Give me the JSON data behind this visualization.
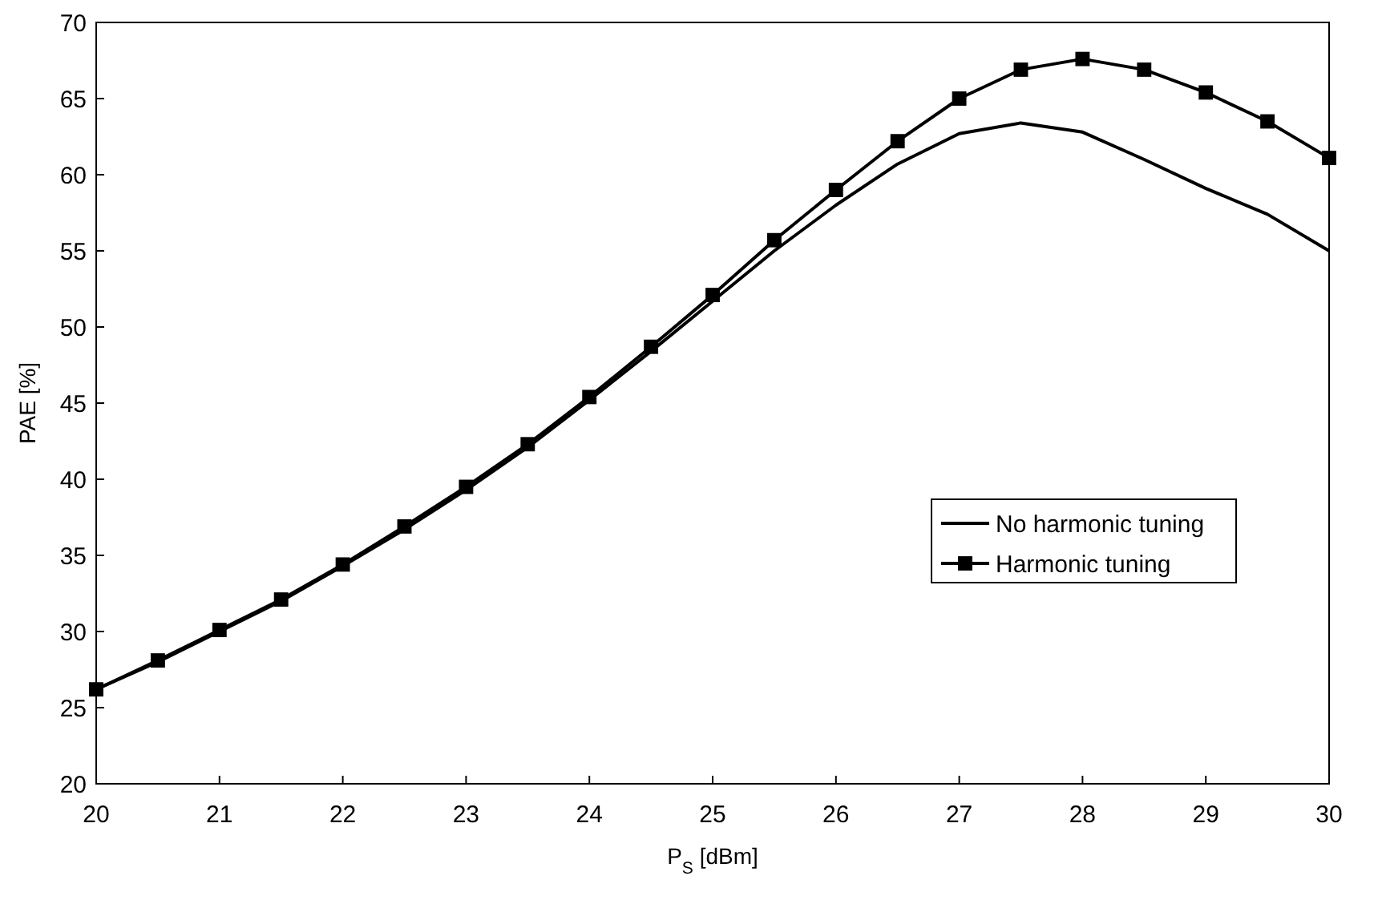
{
  "chart_data": {
    "type": "line",
    "xlabel": "P$_{S}$ [dBm]",
    "ylabel": "PAE [%]",
    "x": [
      20,
      20.5,
      21,
      21.5,
      22,
      22.5,
      23,
      23.5,
      24,
      24.5,
      25,
      25.5,
      26,
      26.5,
      27,
      27.5,
      28,
      28.5,
      29,
      29.5,
      30
    ],
    "series": [
      {
        "name": "No harmonic tuning",
        "color": "#000000",
        "marker": "none",
        "values": [
          26.2,
          28.0,
          30.0,
          32.0,
          34.3,
          36.7,
          39.3,
          42.1,
          45.2,
          48.4,
          51.7,
          55.0,
          58.0,
          60.7,
          62.7,
          63.4,
          62.8,
          61.0,
          59.1,
          57.4,
          55.0
        ]
      },
      {
        "name": "Harmonic tuning",
        "color": "#000000",
        "marker": "square",
        "values": [
          26.2,
          28.1,
          30.1,
          32.1,
          34.4,
          36.9,
          39.5,
          42.3,
          45.4,
          48.7,
          52.1,
          55.7,
          59.0,
          62.2,
          65.0,
          66.9,
          67.6,
          66.9,
          65.4,
          63.5,
          61.1
        ]
      }
    ],
    "xlim": [
      20,
      30
    ],
    "xticks": [
      20,
      21,
      22,
      23,
      24,
      25,
      26,
      27,
      28,
      29,
      30
    ],
    "ylim": [
      20,
      70
    ],
    "yticks": [
      20,
      25,
      30,
      35,
      40,
      45,
      50,
      55,
      60,
      65,
      70
    ],
    "grid": false,
    "legend": "right",
    "line_style": "solid"
  }
}
